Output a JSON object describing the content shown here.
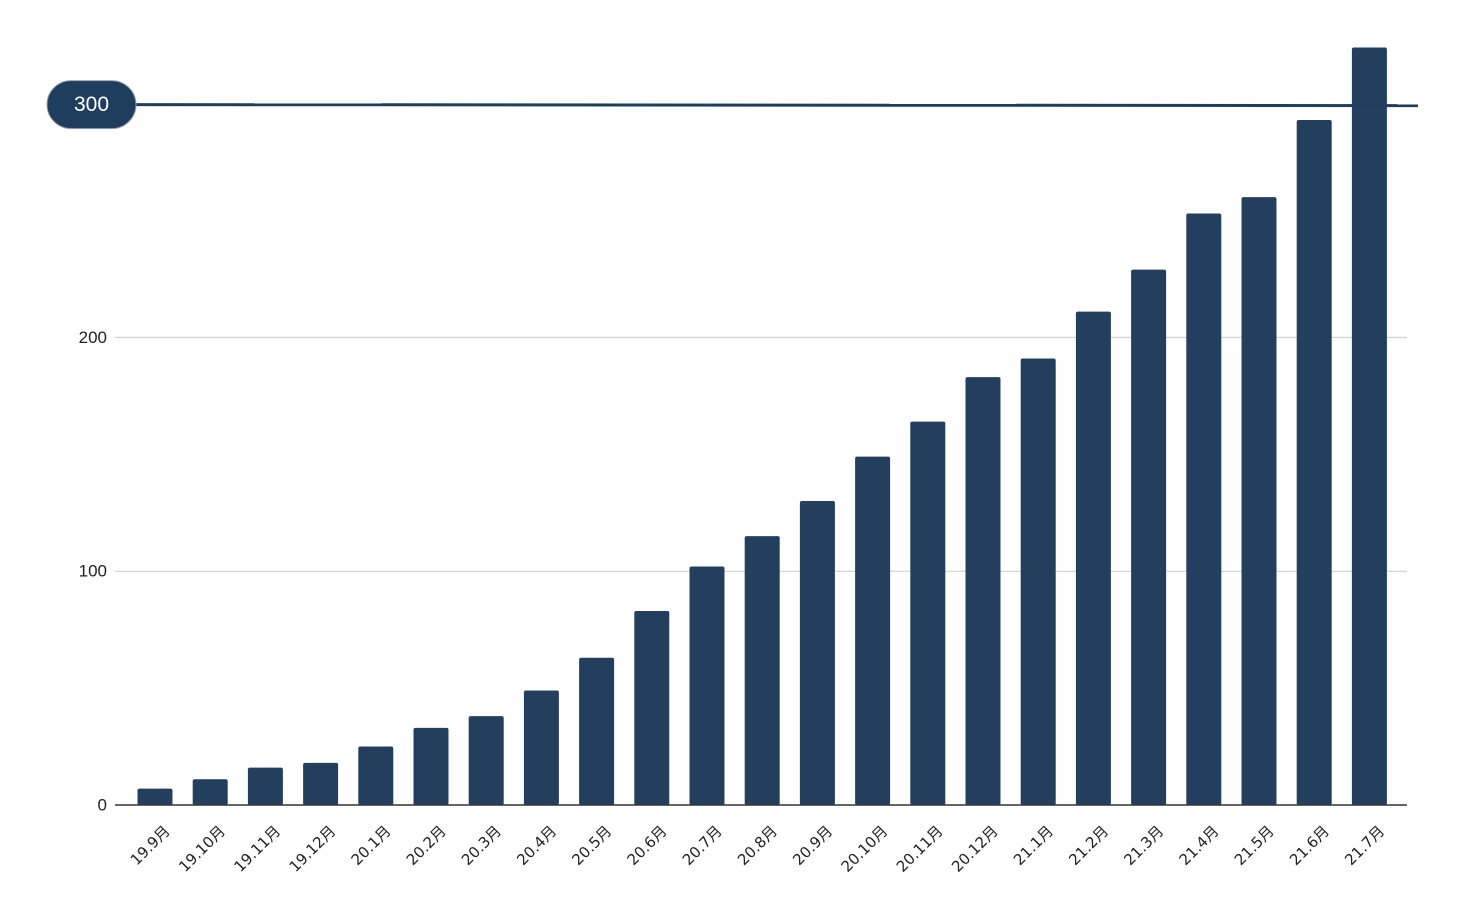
{
  "chart_data": {
    "type": "bar",
    "categories": [
      "19.9月",
      "19.10月",
      "19.11月",
      "19.12月",
      "20.1月",
      "20.2月",
      "20.3月",
      "20.4月",
      "20.5月",
      "20.6月",
      "20.7月",
      "20.8月",
      "20.9月",
      "20.10月",
      "20.11月",
      "20.12月",
      "21.1月",
      "21.2月",
      "21.3月",
      "21.4月",
      "21.5月",
      "21.6月",
      "21.7月"
    ],
    "values": [
      7,
      11,
      16,
      18,
      25,
      33,
      38,
      49,
      63,
      83,
      102,
      115,
      130,
      149,
      164,
      183,
      191,
      211,
      229,
      253,
      260,
      293,
      324
    ],
    "yticks": [
      0,
      100,
      200
    ],
    "ylim": [
      0,
      330
    ],
    "reference_line": {
      "value": 300,
      "label": "300"
    },
    "title": "",
    "xlabel": "",
    "ylabel": "",
    "grid": true,
    "bar_color": "#243f5e",
    "reference_color": "#1f3d5c",
    "grid_color": "#cccccc",
    "axis_color": "#333333"
  }
}
